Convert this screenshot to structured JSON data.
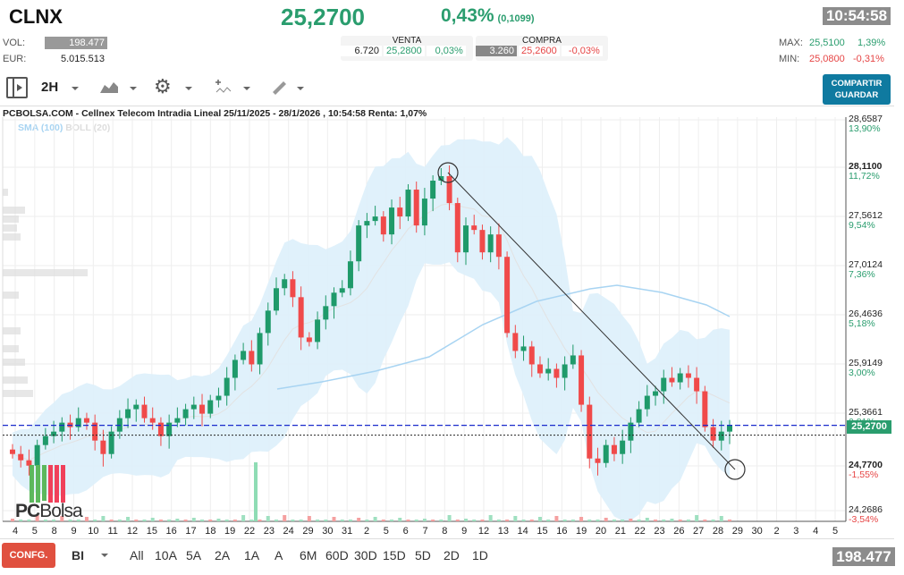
{
  "header": {
    "ticker": "CLNX",
    "price": "25,2700",
    "change_pct": "0,43%",
    "change_abs": "(0,1099)",
    "time": "10:54:58",
    "vol_label": "VOL:",
    "vol_value": "198.477",
    "eur_label": "EUR:",
    "eur_value": "5.015.513",
    "venta": {
      "label": "VENTA",
      "qty": "6.720",
      "price": "25,2800",
      "pct": "0,03%"
    },
    "compra": {
      "label": "COMPRA",
      "qty": "3.260",
      "price": "25,2600",
      "pct": "-0,03%"
    },
    "max": {
      "label": "MAX:",
      "price": "25,5100",
      "pct": "1,39%"
    },
    "min": {
      "label": "MIN:",
      "price": "25,0800",
      "pct": "-0,31%"
    }
  },
  "toolbar": {
    "interval": "2H",
    "share_label": "COMPARTIR",
    "save_label": "GUARDAR"
  },
  "footer": {
    "config_label": "CONFG.",
    "scale": "BI",
    "ranges": [
      "All",
      "10A",
      "5A",
      "2A",
      "1A",
      "A",
      "6M",
      "60D",
      "30D",
      "15D",
      "5D",
      "2D",
      "1D"
    ],
    "volume_total": "198.477"
  },
  "chart_data": {
    "type": "candlestick",
    "title": "PCBOLSA.COM - Cellnex Telecom Intradia Lineal 25/11/2025 - 28/1/2026 , 10:54:58 Renta: 1,07%",
    "legend": [
      "SMA (100)",
      "BOLL (20)"
    ],
    "watermark": "PCBolsa",
    "x_ticks": [
      "4",
      "5",
      "8",
      "9",
      "10",
      "11",
      "12",
      "15",
      "16",
      "17",
      "18",
      "19",
      "22",
      "23",
      "24",
      "29",
      "30",
      "31",
      "2",
      "5",
      "6",
      "7",
      "8",
      "9",
      "12",
      "13",
      "14",
      "15",
      "16",
      "19",
      "20",
      "21",
      "22",
      "23",
      "26",
      "27",
      "28",
      "29",
      "30",
      "2",
      "3",
      "4",
      "5"
    ],
    "y_ticks": [
      {
        "price": "28,6587",
        "pct": "13,90%"
      },
      {
        "price": "28,1100",
        "pct": "11,72%"
      },
      {
        "price": "27,5612",
        "pct": "9,54%"
      },
      {
        "price": "27,0124",
        "pct": "7,36%"
      },
      {
        "price": "26,4636",
        "pct": "5,18%"
      },
      {
        "price": "25,9149",
        "pct": "3,00%"
      },
      {
        "price": "25,3661",
        "pct": "0,81%"
      },
      {
        "price": "24,7700",
        "pct": "-1,55%"
      },
      {
        "price": "24,2686",
        "pct": "-3,54%"
      }
    ],
    "current_price_label": "25,2700",
    "ylim": [
      24.27,
      28.66
    ],
    "trendline": {
      "from": [
        28.11,
        "8 Jan"
      ],
      "to": [
        24.77,
        "28 Jan"
      ]
    },
    "close_approx": [
      24.95,
      24.88,
      24.82,
      25.05,
      25.15,
      25.2,
      25.3,
      25.25,
      25.35,
      25.3,
      25.1,
      24.95,
      25.2,
      25.35,
      25.45,
      25.5,
      25.35,
      25.3,
      25.15,
      25.3,
      25.35,
      25.45,
      25.5,
      25.4,
      25.55,
      25.6,
      25.8,
      26.0,
      26.1,
      25.95,
      26.3,
      26.55,
      26.8,
      26.9,
      26.7,
      26.25,
      26.2,
      26.45,
      26.6,
      26.75,
      26.8,
      27.1,
      27.5,
      27.55,
      27.6,
      27.4,
      27.7,
      27.6,
      27.9,
      27.5,
      27.8,
      28.0,
      28.05,
      27.75,
      27.2,
      27.5,
      27.45,
      27.2,
      27.4,
      27.15,
      26.3,
      26.1,
      26.15,
      25.95,
      25.85,
      25.9,
      25.8,
      25.95,
      26.05,
      25.5,
      24.9,
      24.85,
      25.05,
      24.95,
      25.1,
      25.3,
      25.45,
      25.6,
      25.65,
      25.8,
      25.75,
      25.85,
      25.8,
      25.65,
      25.25,
      25.1,
      25.2,
      25.27
    ]
  }
}
